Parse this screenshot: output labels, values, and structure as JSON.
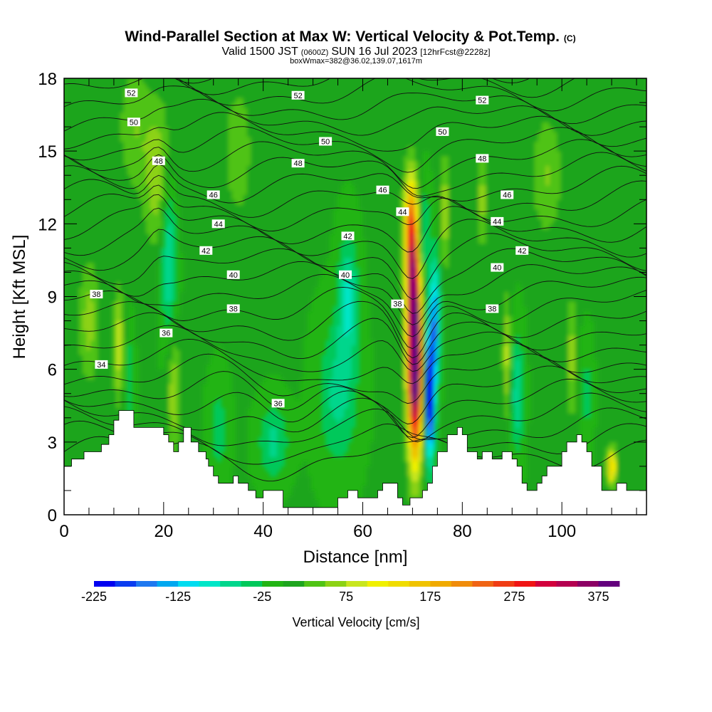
{
  "chart_data": {
    "type": "heatmap",
    "title": "Wind-Parallel Section at Max W: Vertical Velocity & Pot.Temp.",
    "copyright": "(C)",
    "subtitle": {
      "valid": "Valid 1500 JST",
      "utc": "(0600Z)",
      "date": "SUN 16 Jul 2023",
      "forecast": "[12hrFcst@2228z]"
    },
    "boxline": "boxWmax=382@36.02,139.07,1617m",
    "xlabel": "Distance [nm]",
    "ylabel": "Height [Kft MSL]",
    "xlim": [
      0,
      117
    ],
    "ylim": [
      0,
      18
    ],
    "xticks": [
      "0",
      "20",
      "40",
      "60",
      "80",
      "100"
    ],
    "yticks": [
      "0",
      "3",
      "6",
      "9",
      "12",
      "15",
      "18"
    ],
    "colorbar": {
      "label": "Vertical Velocity [cm/s]",
      "tick_labels": [
        "-225",
        "-125",
        "-25",
        "75",
        "175",
        "275",
        "375"
      ],
      "levels": [
        -225,
        -200,
        -175,
        -150,
        -125,
        -100,
        -75,
        -50,
        -25,
        0,
        25,
        50,
        75,
        100,
        125,
        150,
        175,
        200,
        225,
        250,
        275,
        300,
        325,
        350,
        375,
        400
      ],
      "colors": [
        "#0000f0",
        "#0a3cf0",
        "#1e78f0",
        "#00a8f0",
        "#00dcf0",
        "#00e6c8",
        "#00d68c",
        "#00c85a",
        "#22b414",
        "#1ea51e",
        "#50c314",
        "#8cd214",
        "#c8e61e",
        "#f0f000",
        "#f0dc00",
        "#f0c300",
        "#f0aa00",
        "#f08c0a",
        "#f06414",
        "#f03c14",
        "#f01414",
        "#d2003c",
        "#b40050",
        "#8c0064",
        "#64007d"
      ]
    },
    "theta_label_values": [
      "52",
      "50",
      "48",
      "46",
      "44",
      "42",
      "40",
      "38",
      "36",
      "34"
    ],
    "theta_labels": [
      {
        "x": 13.5,
        "y": 17.4,
        "v": "52"
      },
      {
        "x": 47,
        "y": 17.3,
        "v": "52"
      },
      {
        "x": 84,
        "y": 17.1,
        "v": "52"
      },
      {
        "x": 14,
        "y": 16.2,
        "v": "50"
      },
      {
        "x": 52.5,
        "y": 15.4,
        "v": "50"
      },
      {
        "x": 76,
        "y": 15.8,
        "v": "50"
      },
      {
        "x": 19,
        "y": 14.6,
        "v": "48"
      },
      {
        "x": 47,
        "y": 14.5,
        "v": "48"
      },
      {
        "x": 84,
        "y": 14.7,
        "v": "48"
      },
      {
        "x": 30,
        "y": 13.2,
        "v": "46"
      },
      {
        "x": 64,
        "y": 13.4,
        "v": "46"
      },
      {
        "x": 89,
        "y": 13.2,
        "v": "46"
      },
      {
        "x": 31,
        "y": 12.0,
        "v": "44"
      },
      {
        "x": 68,
        "y": 12.5,
        "v": "44"
      },
      {
        "x": 87,
        "y": 12.1,
        "v": "44"
      },
      {
        "x": 28.5,
        "y": 10.9,
        "v": "42"
      },
      {
        "x": 57,
        "y": 11.5,
        "v": "42"
      },
      {
        "x": 92,
        "y": 10.9,
        "v": "42"
      },
      {
        "x": 34,
        "y": 9.9,
        "v": "40"
      },
      {
        "x": 56.5,
        "y": 9.9,
        "v": "40"
      },
      {
        "x": 87,
        "y": 10.2,
        "v": "40"
      },
      {
        "x": 6.5,
        "y": 9.1,
        "v": "38"
      },
      {
        "x": 34,
        "y": 8.5,
        "v": "38"
      },
      {
        "x": 67,
        "y": 8.7,
        "v": "38"
      },
      {
        "x": 86,
        "y": 8.5,
        "v": "38"
      },
      {
        "x": 20.5,
        "y": 7.5,
        "v": "36"
      },
      {
        "x": 43,
        "y": 4.6,
        "v": "36"
      },
      {
        "x": 7.5,
        "y": 6.2,
        "v": "34"
      }
    ],
    "terrain": [
      [
        0,
        2.0
      ],
      [
        1.5,
        2.0
      ],
      [
        1.5,
        2.3
      ],
      [
        4,
        2.3
      ],
      [
        4,
        2.6
      ],
      [
        7.5,
        2.6
      ],
      [
        7.5,
        2.9
      ],
      [
        9,
        2.9
      ],
      [
        9,
        3.3
      ],
      [
        10,
        3.3
      ],
      [
        10,
        3.9
      ],
      [
        11,
        3.9
      ],
      [
        11,
        4.3
      ],
      [
        14,
        4.3
      ],
      [
        14,
        3.6
      ],
      [
        20,
        3.6
      ],
      [
        20,
        3.3
      ],
      [
        21,
        3.3
      ],
      [
        21,
        3.0
      ],
      [
        22,
        3.0
      ],
      [
        22,
        2.6
      ],
      [
        23,
        2.6
      ],
      [
        23,
        3.0
      ],
      [
        24,
        3.0
      ],
      [
        24,
        3.6
      ],
      [
        25.5,
        3.6
      ],
      [
        25.5,
        3.0
      ],
      [
        27,
        3.0
      ],
      [
        27,
        2.6
      ],
      [
        28.5,
        2.6
      ],
      [
        28.5,
        2.3
      ],
      [
        29,
        2.3
      ],
      [
        29,
        2.0
      ],
      [
        30,
        2.0
      ],
      [
        30,
        1.6
      ],
      [
        31,
        1.6
      ],
      [
        31,
        1.3
      ],
      [
        34,
        1.3
      ],
      [
        34,
        1.6
      ],
      [
        35,
        1.6
      ],
      [
        35,
        1.3
      ],
      [
        37,
        1.3
      ],
      [
        37,
        1.0
      ],
      [
        38.5,
        1.0
      ],
      [
        38.5,
        0.7
      ],
      [
        40,
        0.7
      ],
      [
        40,
        1.0
      ],
      [
        44,
        1.0
      ],
      [
        44,
        0.3
      ],
      [
        48,
        0.3
      ],
      [
        48,
        0.3
      ],
      [
        55,
        0.3
      ],
      [
        55,
        0.7
      ],
      [
        57,
        0.7
      ],
      [
        57,
        1.0
      ],
      [
        59,
        1.0
      ],
      [
        59,
        0.7
      ],
      [
        63,
        0.7
      ],
      [
        63,
        1.0
      ],
      [
        64,
        1.0
      ],
      [
        64,
        1.3
      ],
      [
        67,
        1.3
      ],
      [
        67,
        0.7
      ],
      [
        68,
        0.7
      ],
      [
        68,
        0.4
      ],
      [
        69.5,
        0.4
      ],
      [
        69.5,
        0.7
      ],
      [
        72,
        0.7
      ],
      [
        72,
        1.0
      ],
      [
        73,
        1.0
      ],
      [
        73,
        1.3
      ],
      [
        74,
        1.3
      ],
      [
        74,
        2.0
      ],
      [
        75,
        2.0
      ],
      [
        75,
        2.6
      ],
      [
        77,
        2.6
      ],
      [
        77,
        3.3
      ],
      [
        79,
        3.3
      ],
      [
        79,
        3.6
      ],
      [
        80,
        3.6
      ],
      [
        80,
        3.3
      ],
      [
        81,
        3.3
      ],
      [
        81,
        2.6
      ],
      [
        83,
        2.6
      ],
      [
        83,
        2.3
      ],
      [
        84,
        2.3
      ],
      [
        84,
        2.6
      ],
      [
        86,
        2.6
      ],
      [
        86,
        2.3
      ],
      [
        88,
        2.3
      ],
      [
        88,
        2.6
      ],
      [
        90,
        2.6
      ],
      [
        90,
        2.3
      ],
      [
        91,
        2.3
      ],
      [
        91,
        2.0
      ],
      [
        92,
        2.0
      ],
      [
        92,
        1.3
      ],
      [
        93,
        1.3
      ],
      [
        93,
        1.0
      ],
      [
        95,
        1.0
      ],
      [
        95,
        1.3
      ],
      [
        96,
        1.3
      ],
      [
        96,
        1.6
      ],
      [
        97,
        1.6
      ],
      [
        97,
        2.0
      ],
      [
        100,
        2.0
      ],
      [
        100,
        2.6
      ],
      [
        101,
        2.6
      ],
      [
        101,
        3.0
      ],
      [
        103,
        3.0
      ],
      [
        103,
        3.3
      ],
      [
        104,
        3.3
      ],
      [
        104,
        3.0
      ],
      [
        105,
        3.0
      ],
      [
        105,
        2.6
      ],
      [
        106,
        2.6
      ],
      [
        106,
        2.0
      ],
      [
        108,
        2.0
      ],
      [
        108,
        1.0
      ],
      [
        111,
        1.0
      ],
      [
        111,
        1.3
      ],
      [
        113,
        1.3
      ],
      [
        113,
        1.0
      ],
      [
        117,
        1.0
      ]
    ]
  }
}
